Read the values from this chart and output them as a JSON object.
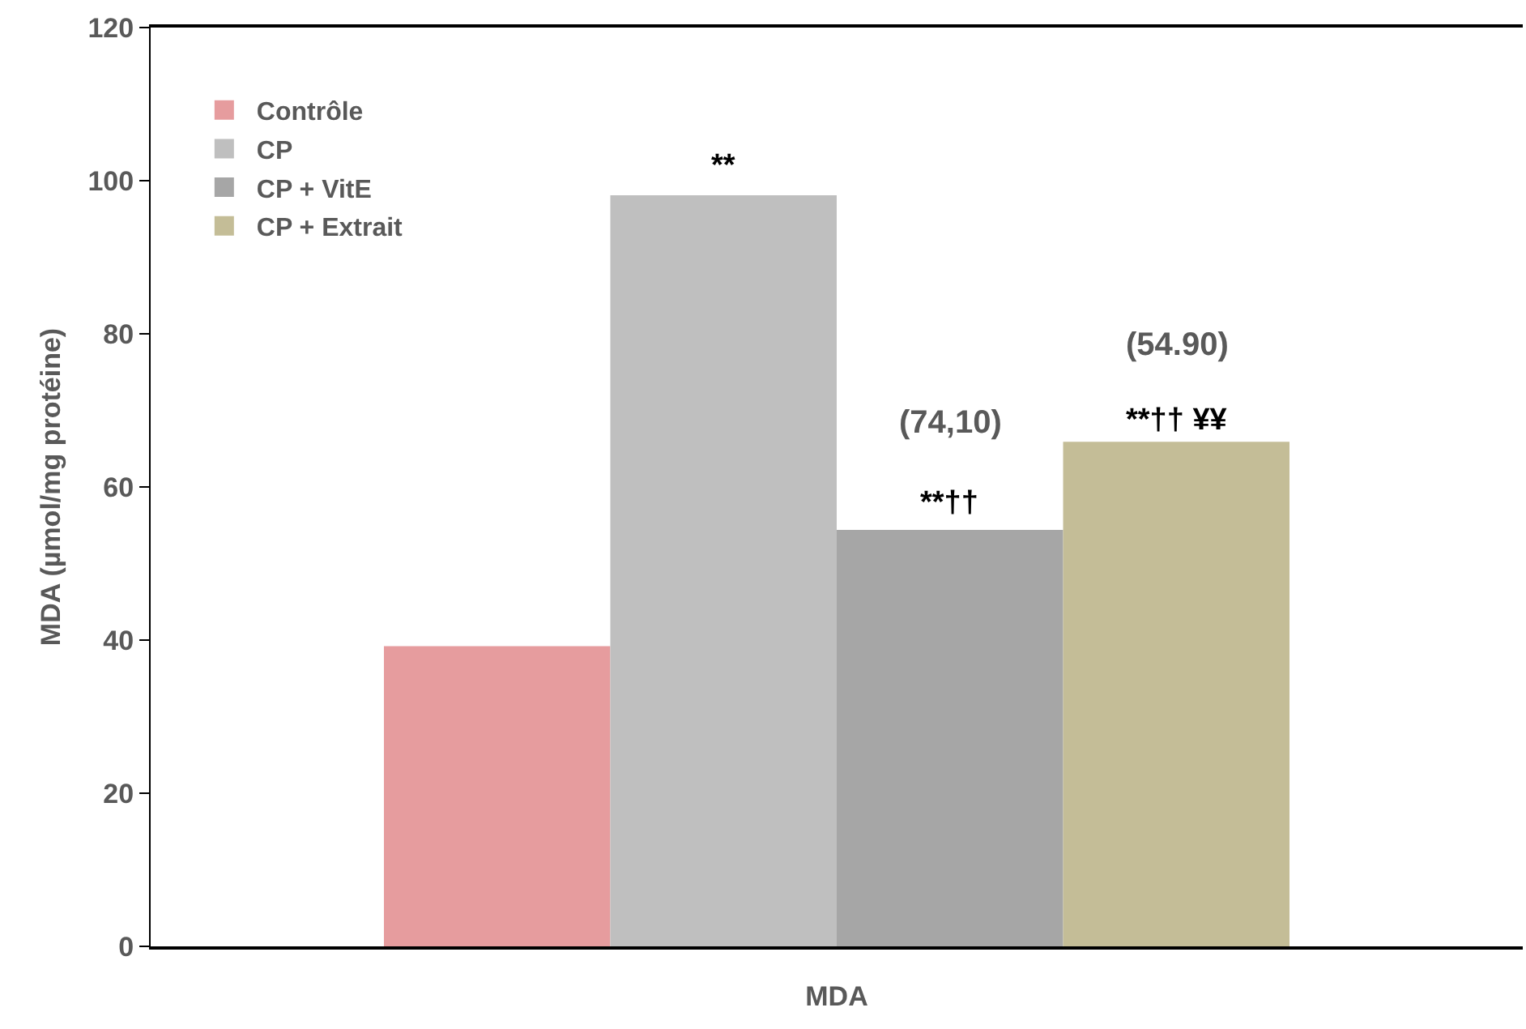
{
  "chart_data": {
    "type": "bar",
    "categories": [
      "MDA"
    ],
    "ylabel": "MDA (µmol/mg protéine)",
    "series": [
      {
        "name": "Contrôle",
        "color": "#e69c9e",
        "values": [
          39.2
        ]
      },
      {
        "name": "CP",
        "color": "#bfbfbf",
        "values": [
          98.1
        ]
      },
      {
        "name": "CP + VitE",
        "color": "#a6a6a6",
        "values": [
          54.4
        ]
      },
      {
        "name": "CP + Extrait",
        "color": "#c4bd97",
        "values": [
          65.9
        ]
      }
    ],
    "ylim": [
      0,
      120
    ],
    "yticks": [
      0,
      20,
      40,
      60,
      80,
      100,
      120
    ],
    "grid": false,
    "legend": "top left",
    "annotations": [
      "**",
      "**††",
      "(74,10)",
      "(54.90)",
      "**†† ¥¥"
    ]
  }
}
